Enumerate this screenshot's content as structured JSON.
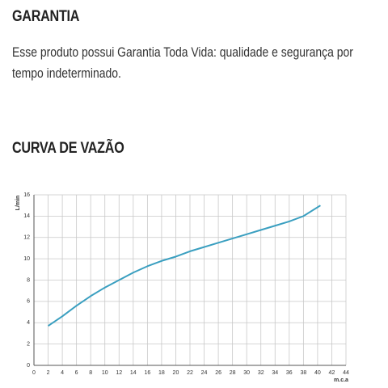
{
  "warranty": {
    "title": "GARANTIA",
    "text": "Esse produto possui Garantia Toda Vida: qualidade e segurança por tempo indeterminado."
  },
  "curve_title": "CURVA DE VAZÃO",
  "chart_data": {
    "type": "line",
    "x_label": "m.c.a",
    "y_label": "L/min",
    "xlim": [
      0,
      44
    ],
    "xticks": [
      0,
      2,
      4,
      6,
      8,
      10,
      12,
      14,
      16,
      18,
      20,
      22,
      24,
      26,
      28,
      30,
      32,
      34,
      36,
      38,
      40,
      42,
      44
    ],
    "ylim": [
      0,
      16
    ],
    "yticks": [
      0,
      2,
      4,
      6,
      8,
      10,
      12,
      14,
      16
    ],
    "grid": true,
    "series": [
      {
        "color": "#3a9fc0",
        "x": [
          2,
          4,
          6,
          8,
          10,
          12,
          14,
          16,
          18,
          20,
          22,
          24,
          26,
          28,
          30,
          32,
          34,
          36,
          38,
          40.4
        ],
        "values": [
          3.7,
          4.6,
          5.6,
          6.5,
          7.3,
          8.0,
          8.7,
          9.3,
          9.8,
          10.2,
          10.7,
          11.1,
          11.5,
          11.9,
          12.3,
          12.7,
          13.1,
          13.5,
          14.0,
          15.0
        ]
      }
    ]
  }
}
